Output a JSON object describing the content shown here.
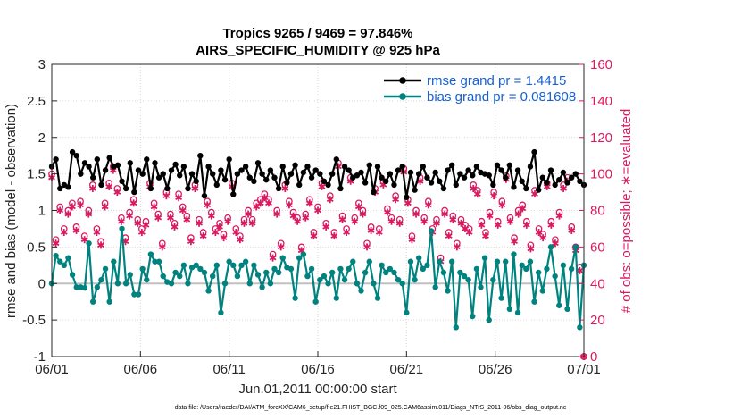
{
  "chart_data": {
    "type": "line",
    "title": "Tropics 9265 / 9469 = 97.846%",
    "subtitle": "AIRS_SPECIFIC_HUMIDITY @ 925 hPa",
    "xlabel": "Jun.01,2011 00:00:00 start",
    "ylabel": "rmse and bias (model - observation)",
    "ylabel_right": "# of obs: o=possible; ∗=evaluated",
    "footer": "data file: /Users/raeder/DAI/ATM_forcXX/CAM6_setup/f.e21.FHIST_BGC.f09_025.CAM6assim.011/Diags_NTrS_2011-06/obs_diag_output.nc",
    "ylim": [
      -1,
      3
    ],
    "ylim_right": [
      0,
      160
    ],
    "xlim": [
      0,
      30
    ],
    "grid": true,
    "x_tick_labels": [
      "06/01",
      "06/06",
      "06/11",
      "06/16",
      "06/21",
      "06/26",
      "07/01"
    ],
    "y_tick_labels": [
      "-1",
      "-0.5",
      "0",
      "0.5",
      "1",
      "1.5",
      "2",
      "2.5",
      "3"
    ],
    "y_right_tick_labels": [
      "0",
      "20",
      "40",
      "60",
      "80",
      "100",
      "120",
      "140",
      "160"
    ],
    "legend_position": "top-right",
    "colors": {
      "rmse": "#000000",
      "bias": "#00827f",
      "obs": "#d81b60",
      "legend_text": "#1560d8",
      "zero_line": "#c0c0c0"
    },
    "series": [
      {
        "name": "rmse grand pr = 1.4415",
        "values": [
          1.6,
          1.7,
          1.3,
          1.35,
          1.32,
          1.8,
          1.75,
          1.5,
          1.65,
          1.6,
          1.45,
          1.7,
          1.35,
          1.55,
          1.72,
          1.6,
          1.62,
          1.4,
          1.3,
          1.65,
          1.25,
          1.55,
          1.5,
          1.7,
          1.3,
          1.65,
          1.45,
          1.5,
          1.3,
          1.55,
          1.63,
          1.48,
          1.6,
          1.3,
          1.5,
          1.4,
          1.75,
          1.2,
          1.6,
          1.5,
          1.35,
          1.55,
          1.42,
          1.7,
          1.22,
          1.5,
          1.55,
          1.6,
          1.45,
          1.4,
          1.65,
          1.5,
          1.42,
          1.55,
          1.45,
          1.3,
          1.6,
          1.38,
          1.5,
          1.62,
          1.35,
          1.52,
          1.6,
          1.45,
          1.55,
          1.5,
          1.4,
          1.35,
          1.5,
          1.7,
          1.3,
          1.6,
          1.55,
          1.45,
          1.48,
          1.52,
          1.38,
          1.62,
          1.25,
          1.6,
          1.45,
          1.4,
          1.5,
          1.35,
          1.55,
          1.6,
          1.18,
          1.52,
          1.28,
          1.5,
          1.6,
          1.45,
          1.38,
          1.52,
          1.4,
          1.3,
          1.55,
          1.62,
          1.35,
          1.5,
          1.45,
          1.55,
          1.48,
          1.6,
          1.52,
          1.5,
          1.48,
          1.35,
          1.62,
          1.55,
          1.45,
          1.62,
          1.32,
          1.55,
          1.4,
          1.3,
          1.6,
          1.8,
          1.28,
          1.45,
          1.38,
          1.55,
          1.35,
          1.42,
          1.52,
          1.38,
          1.45,
          1.5,
          1.4,
          1.35
        ]
      },
      {
        "name": "bias grand pr = 0.081608",
        "values": [
          0.0,
          0.38,
          0.3,
          0.25,
          0.35,
          0.12,
          -0.05,
          -0.05,
          -0.06,
          0.55,
          -0.25,
          -0.05,
          0.05,
          0.2,
          -0.25,
          0.3,
          0.0,
          0.75,
          0.0,
          0.12,
          -0.15,
          -0.15,
          0.2,
          0.05,
          0.4,
          0.3,
          0.3,
          0.1,
          0.02,
          0.0,
          0.15,
          0.1,
          0.25,
          0.0,
          0.22,
          0.25,
          0.2,
          0.15,
          -0.1,
          0.1,
          0.25,
          -0.4,
          0.0,
          0.3,
          0.25,
          0.1,
          0.25,
          0.3,
          0.0,
          0.25,
          0.12,
          -0.05,
          0.15,
          0.0,
          0.2,
          0.15,
          0.35,
          0.22,
          0.2,
          -0.2,
          0.35,
          0.4,
          0.1,
          0.2,
          -0.25,
          0.05,
          0.1,
          0.0,
          0.15,
          -0.2,
          0.2,
          0.05,
          0.2,
          0.3,
          0.0,
          -0.1,
          0.15,
          0.3,
          0.0,
          -0.2,
          0.25,
          0.15,
          0.2,
          0.15,
          0.05,
          0.0,
          -0.4,
          0.3,
          0.05,
          0.35,
          0.2,
          0.25,
          0.72,
          -0.05,
          0.3,
          0.15,
          -0.1,
          0.3,
          -0.6,
          0.15,
          0.1,
          0.05,
          -0.45,
          0.2,
          -0.05,
          0.35,
          -0.5,
          0.05,
          0.3,
          -0.2,
          0.3,
          -0.35,
          0.4,
          -0.4,
          0.25,
          0.2,
          0.3,
          -0.25,
          0.15,
          -0.1,
          0.2,
          0.5,
          0.1,
          -0.3,
          0.25,
          -0.35,
          0.2,
          0.5,
          -0.6,
          0.25
        ]
      },
      {
        "name": "# of obs possible",
        "values": [
          100,
          64,
          82,
          70,
          80,
          84,
          71,
          85,
          66,
          80,
          94,
          70,
          63,
          84,
          95,
          104,
          92,
          76,
          65,
          79,
          86,
          75,
          70,
          74,
          95,
          84,
          78,
          62,
          90,
          78,
          73,
          89,
          82,
          77,
          65,
          94,
          75,
          68,
          85,
          79,
          70,
          73,
          67,
          76,
          95,
          70,
          66,
          75,
          80,
          75,
          84,
          86,
          89,
          86,
          56,
          80,
          62,
          94,
          85,
          79,
          76,
          60,
          78,
          86,
          68,
          82,
          95,
          73,
          88,
          68,
          106,
          77,
          70,
          98,
          76,
          84,
          80,
          62,
          71,
          92,
          70,
          96,
          81,
          76,
          88,
          75,
          103,
          86,
          66,
          80,
          98,
          76,
          85,
          70,
          75,
          54,
          80,
          68,
          77,
          62,
          75,
          72,
          70,
          94,
          91,
          74,
          68,
          79,
          90,
          74,
          85,
          99,
          76,
          65,
          80,
          83,
          74,
          61,
          91,
          70,
          67,
          95,
          74,
          64,
          79,
          94,
          98,
          71,
          60,
          49,
          0
        ]
      },
      {
        "name": "# of obs evaluated",
        "values": [
          98,
          62,
          80,
          68,
          78,
          82,
          69,
          83,
          64,
          78,
          92,
          68,
          61,
          82,
          93,
          102,
          90,
          74,
          63,
          77,
          84,
          73,
          68,
          72,
          93,
          82,
          76,
          60,
          88,
          76,
          71,
          87,
          80,
          75,
          63,
          92,
          73,
          66,
          83,
          77,
          68,
          71,
          65,
          74,
          93,
          68,
          64,
          73,
          78,
          73,
          82,
          84,
          87,
          84,
          54,
          78,
          60,
          92,
          83,
          77,
          74,
          58,
          76,
          84,
          66,
          80,
          93,
          71,
          86,
          66,
          104,
          75,
          68,
          96,
          74,
          82,
          78,
          60,
          69,
          90,
          68,
          94,
          79,
          74,
          86,
          73,
          101,
          84,
          64,
          78,
          96,
          74,
          83,
          68,
          73,
          52,
          78,
          66,
          75,
          60,
          73,
          70,
          68,
          92,
          89,
          72,
          66,
          77,
          88,
          72,
          83,
          97,
          74,
          63,
          78,
          81,
          72,
          59,
          89,
          68,
          65,
          93,
          72,
          62,
          77,
          92,
          96,
          69,
          58,
          47,
          0
        ]
      }
    ]
  }
}
